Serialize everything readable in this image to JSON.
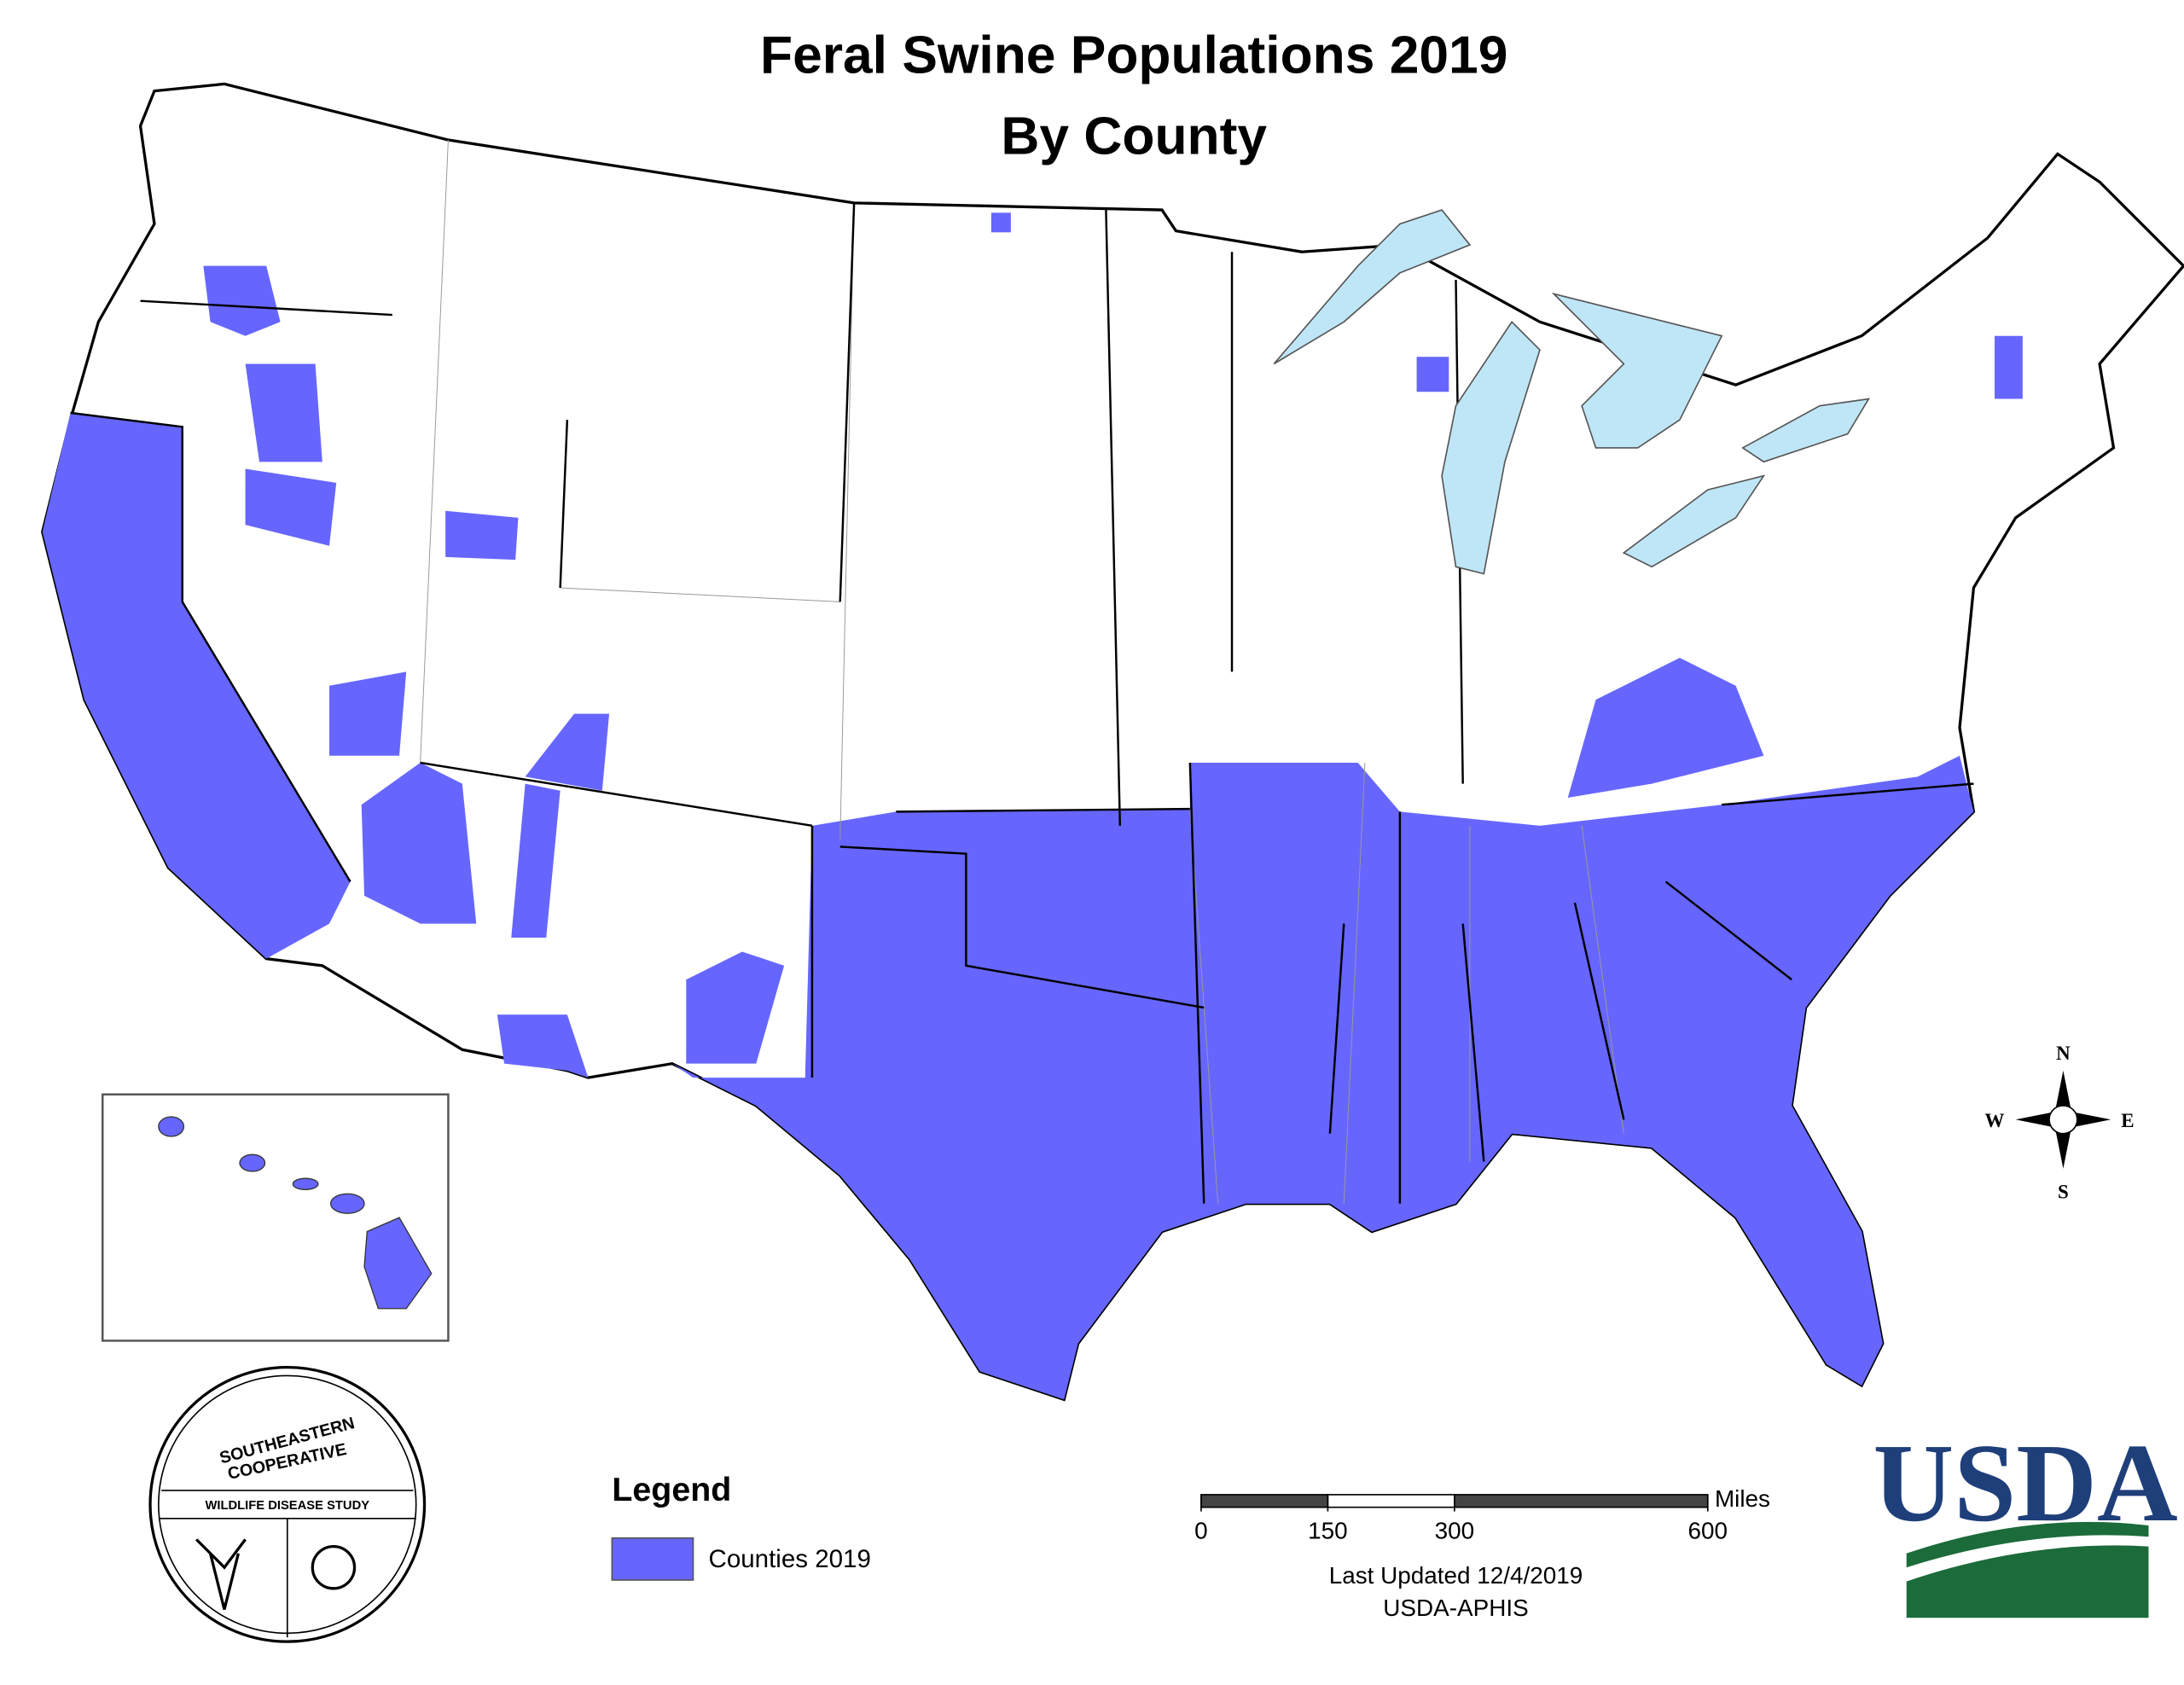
{
  "title": "Feral Swine Populations 2019",
  "subtitle": "By County",
  "legend": {
    "title": "Legend",
    "items": [
      {
        "label": "Counties 2019",
        "color": "#6666ff"
      }
    ]
  },
  "scale_bar": {
    "unit": "Miles",
    "ticks": [
      0,
      150,
      300,
      600
    ]
  },
  "compass": {
    "n": "N",
    "e": "E",
    "s": "S",
    "w": "W"
  },
  "footer": {
    "updated": "Last Updated 12/4/2019",
    "source": "USDA-APHIS"
  },
  "logos": {
    "sec_top": "SOUTHEASTERN",
    "sec_mid": "COOPERATIVE",
    "sec_band": "WILDLIFE DISEASE STUDY",
    "usda": "USDA"
  }
}
